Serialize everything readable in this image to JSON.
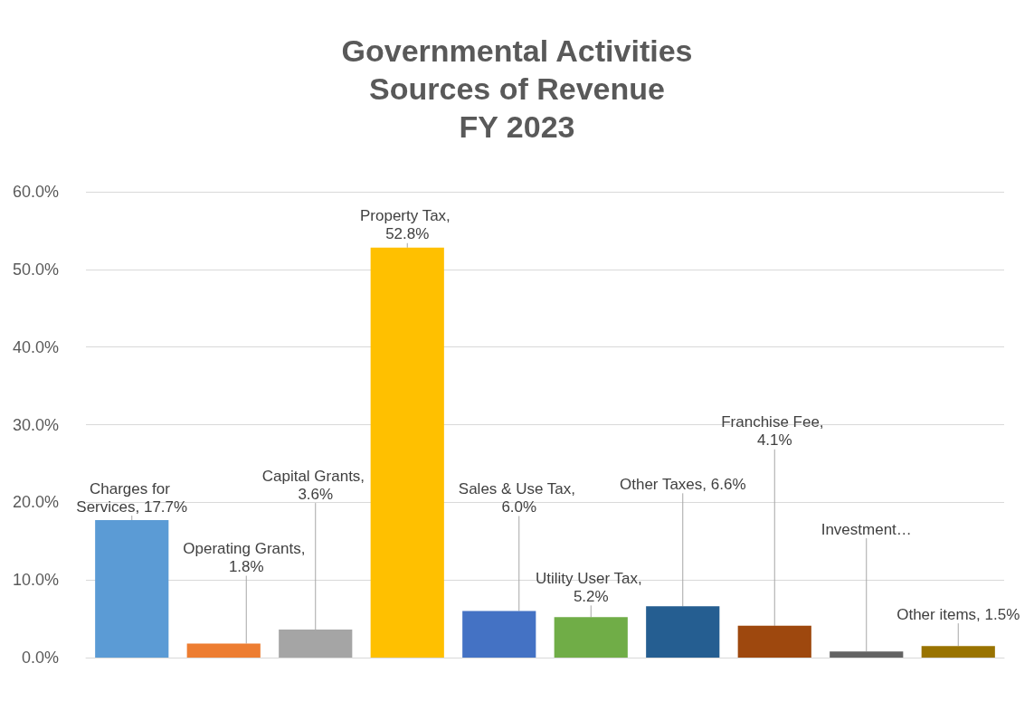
{
  "chart_data": {
    "type": "bar",
    "title": "Governmental Activities\nSources of Revenue\nFY 2023",
    "categories": [
      null,
      null,
      null,
      null,
      null,
      null,
      null,
      null,
      null,
      null
    ],
    "values": [
      17.7,
      1.8,
      3.6,
      52.8,
      6.0,
      5.2,
      6.6,
      4.1,
      0.8,
      1.5
    ],
    "colors": [
      "#5b9bd5",
      "#ed7d31",
      "#a5a5a5",
      "#ffc000",
      "#4472c4",
      "#70ad47",
      "#255e91",
      "#9e480e",
      "#636363",
      "#997300"
    ],
    "value_labels": [
      "Charges for Services, 17.7%",
      "Operating Grants, 1.8%",
      "Capital Grants, 3.6%",
      "Property Tax, 52.8%",
      "Sales & Use Tax, 6.0%",
      "Utility User Tax, 5.2%",
      "Other Taxes, 6.6%",
      "Franchise Fee, 4.1%",
      "Investment…",
      "Other items, 1.5%"
    ],
    "ylim": [
      0,
      60
    ],
    "yticks": [
      {
        "value": 0,
        "label": "0.0%"
      },
      {
        "value": 10,
        "label": "10.0%"
      },
      {
        "value": 20,
        "label": "20.0%"
      },
      {
        "value": 30,
        "label": "30.0%"
      },
      {
        "value": 40,
        "label": "40.0%"
      },
      {
        "value": 50,
        "label": "50.0%"
      },
      {
        "value": 60,
        "label": "60.0%"
      }
    ],
    "grid": true
  }
}
